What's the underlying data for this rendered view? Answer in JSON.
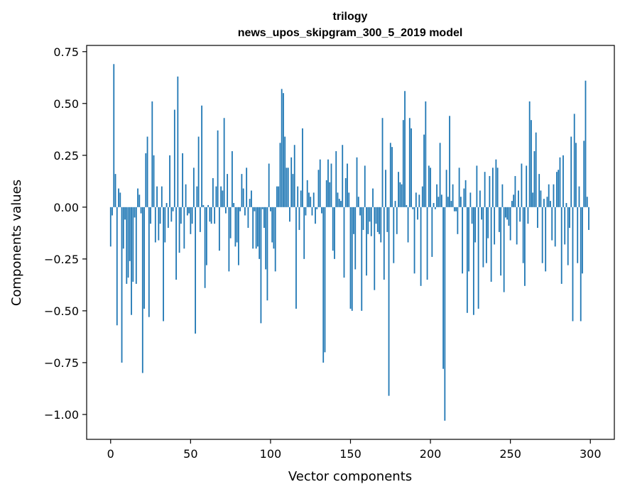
{
  "chart_data": {
    "type": "bar",
    "title": "trilogy",
    "subtitle": "news_upos_skipgram_300_5_2019 model",
    "xlabel": "Vector components",
    "ylabel": "Components values",
    "xlim": [
      -15,
      315
    ],
    "ylim": [
      -1.12,
      0.78
    ],
    "xticks": [
      0,
      50,
      100,
      150,
      200,
      250,
      300
    ],
    "xtick_labels": [
      "0",
      "50",
      "100",
      "150",
      "200",
      "250",
      "300"
    ],
    "yticks": [
      0.75,
      0.5,
      0.25,
      0.0,
      -0.25,
      -0.5,
      -0.75,
      -1.0
    ],
    "ytick_labels": [
      "0.75",
      "0.50",
      "0.25",
      "0.00",
      "−0.25",
      "−0.50",
      "−0.75",
      "−1.00"
    ],
    "bar_color": "#1f77b4",
    "grid": false,
    "series": [
      {
        "name": "trilogy",
        "values": [
          -0.19,
          -0.04,
          0.69,
          0.16,
          -0.57,
          0.09,
          0.07,
          -0.75,
          -0.2,
          -0.06,
          -0.37,
          -0.34,
          -0.26,
          -0.52,
          -0.36,
          -0.05,
          -0.37,
          0.09,
          0.06,
          -0.03,
          -0.8,
          -0.49,
          0.26,
          0.34,
          -0.53,
          -0.08,
          0.51,
          0.25,
          -0.17,
          0.1,
          -0.16,
          -0.08,
          0.1,
          -0.55,
          -0.17,
          0.02,
          -0.1,
          0.25,
          -0.07,
          -0.02,
          0.47,
          -0.35,
          0.63,
          -0.22,
          -0.08,
          0.26,
          -0.2,
          0.11,
          -0.04,
          -0.03,
          -0.13,
          -0.08,
          0.19,
          -0.61,
          0.1,
          0.34,
          -0.12,
          0.49,
          0.01,
          -0.39,
          -0.28,
          0.01,
          -0.07,
          -0.08,
          0.14,
          -0.08,
          0.1,
          0.37,
          -0.21,
          0.1,
          0.08,
          0.43,
          -0.03,
          0.16,
          -0.31,
          -0.15,
          0.27,
          0.02,
          -0.19,
          -0.17,
          -0.28,
          -0.02,
          0.16,
          0.09,
          -0.04,
          0.19,
          -0.1,
          0.04,
          0.08,
          -0.2,
          -0.02,
          -0.2,
          -0.19,
          -0.25,
          -0.56,
          -0.01,
          -0.1,
          -0.3,
          -0.45,
          0.21,
          -0.02,
          -0.17,
          -0.2,
          -0.31,
          0.1,
          0.1,
          0.31,
          0.57,
          0.55,
          0.34,
          0.19,
          0.19,
          -0.07,
          0.24,
          0.16,
          0.3,
          -0.49,
          0.1,
          -0.11,
          0.08,
          0.38,
          -0.25,
          -0.04,
          0.13,
          0.07,
          0.05,
          -0.04,
          0.07,
          -0.08,
          -0.01,
          0.18,
          0.23,
          -0.03,
          -0.75,
          -0.7,
          0.13,
          0.23,
          0.12,
          0.21,
          -0.21,
          -0.25,
          0.27,
          0.07,
          0.04,
          0.03,
          0.3,
          -0.34,
          0.14,
          0.21,
          0.07,
          -0.49,
          -0.5,
          -0.13,
          -0.3,
          0.24,
          0.05,
          -0.04,
          -0.5,
          -0.11,
          0.2,
          -0.33,
          -0.13,
          -0.07,
          -0.14,
          0.09,
          -0.4,
          -0.08,
          -0.12,
          -0.13,
          -0.17,
          0.43,
          -0.35,
          0.18,
          -0.12,
          -0.91,
          0.31,
          0.29,
          -0.27,
          0.03,
          -0.13,
          0.17,
          0.12,
          0.11,
          0.42,
          0.56,
          0.01,
          -0.17,
          0.43,
          0.38,
          -0.01,
          -0.32,
          0.07,
          -0.06,
          0.06,
          -0.38,
          0.1,
          0.35,
          0.51,
          -0.35,
          0.2,
          0.19,
          -0.24,
          0.02,
          -0.01,
          0.11,
          0.05,
          0.31,
          0.06,
          -0.78,
          -1.03,
          0.18,
          0.05,
          0.44,
          0.03,
          0.11,
          -0.02,
          -0.02,
          -0.13,
          0.19,
          0.05,
          -0.32,
          0.09,
          0.13,
          -0.51,
          -0.31,
          0.07,
          -0.08,
          -0.52,
          -0.17,
          0.2,
          -0.49,
          0.08,
          -0.06,
          -0.29,
          0.17,
          -0.27,
          -0.15,
          0.15,
          -0.36,
          0.19,
          -0.18,
          0.23,
          0.19,
          -0.12,
          -0.33,
          0.11,
          -0.41,
          -0.05,
          -0.06,
          -0.09,
          -0.16,
          0.03,
          0.06,
          0.15,
          -0.18,
          0.08,
          -0.07,
          0.21,
          -0.27,
          -0.38,
          0.2,
          -0.08,
          0.51,
          0.42,
          0.07,
          0.27,
          0.36,
          -0.1,
          0.16,
          0.08,
          -0.27,
          0.04,
          -0.31,
          0.05,
          0.11,
          0.03,
          -0.16,
          0.11,
          -0.19,
          0.17,
          0.18,
          0.24,
          -0.37,
          0.25,
          -0.18,
          0.02,
          -0.28,
          -0.1,
          0.34,
          -0.55,
          0.45,
          0.31,
          -0.27,
          0.1,
          -0.55,
          -0.32,
          0.32,
          0.61,
          0.05,
          -0.11
        ]
      }
    ]
  }
}
